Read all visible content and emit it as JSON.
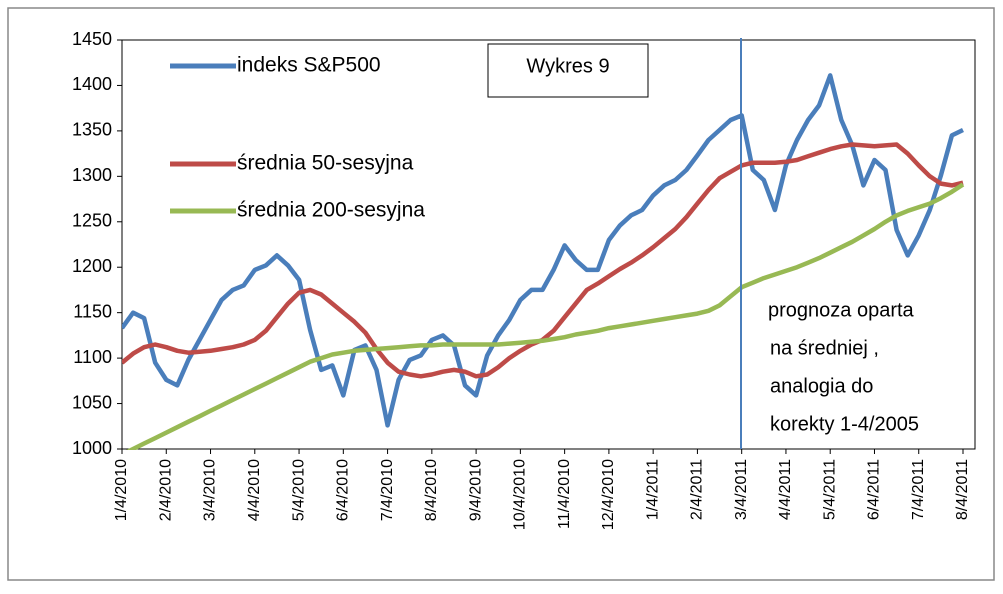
{
  "chart_data": {
    "type": "line",
    "title": "Wykres 9",
    "annotation": [
      "prognoza oparta",
      "na średniej ,",
      "analogia do",
      "korekty 1-4/2005"
    ],
    "categories": [
      "1/4/2010",
      null,
      null,
      null,
      "2/4/2010",
      null,
      null,
      null,
      "3/4/2010",
      null,
      null,
      null,
      "4/4/2010",
      null,
      null,
      null,
      "5/4/2010",
      null,
      null,
      null,
      "6/4/2010",
      null,
      null,
      null,
      "7/4/2010",
      null,
      null,
      null,
      "8/4/2010",
      null,
      null,
      null,
      "9/4/2010",
      null,
      null,
      null,
      "10/4/2010",
      null,
      null,
      null,
      "11/4/2010",
      null,
      null,
      null,
      "12/4/2010",
      null,
      null,
      null,
      "1/4/2011",
      null,
      null,
      null,
      "2/4/2011",
      null,
      null,
      null,
      "3/4/2011",
      null,
      null,
      null,
      "4/4/2011",
      null,
      null,
      null,
      "5/4/2011",
      null,
      null,
      null,
      "6/4/2011",
      null,
      null,
      null,
      "7/4/2011",
      null,
      null,
      null,
      "8/4/2011"
    ],
    "series": [
      {
        "name": "indeks S&P500",
        "color": "#4a7ebb",
        "values": [
          1133,
          1150,
          1144,
          1095,
          1076,
          1070,
          1098,
          1120,
          1142,
          1164,
          1175,
          1180,
          1197,
          1202,
          1213,
          1202,
          1186,
          1131,
          1087,
          1092,
          1059,
          1109,
          1114,
          1087,
          1026,
          1076,
          1098,
          1103,
          1120,
          1125,
          1114,
          1070,
          1059,
          1103,
          1125,
          1142,
          1164,
          1175,
          1175,
          1197,
          1224,
          1208,
          1197,
          1197,
          1230,
          1246,
          1257,
          1263,
          1279,
          1290,
          1296,
          1307,
          1323,
          1340,
          1351,
          1362,
          1367,
          1307,
          1296,
          1263,
          1312,
          1340,
          1362,
          1378,
          1411,
          1362,
          1334,
          1290,
          1318,
          1307,
          1241,
          1213,
          1235,
          1263,
          1301,
          1345,
          1351
        ]
      },
      {
        "name": "średnia 50-sesyjna",
        "color": "#be4b48",
        "values": [
          1095,
          1105,
          1112,
          1115,
          1112,
          1108,
          1106,
          1107,
          1108,
          1110,
          1112,
          1115,
          1120,
          1130,
          1145,
          1160,
          1172,
          1175,
          1170,
          1160,
          1150,
          1140,
          1128,
          1110,
          1095,
          1085,
          1082,
          1080,
          1082,
          1085,
          1087,
          1085,
          1080,
          1082,
          1090,
          1100,
          1108,
          1115,
          1120,
          1130,
          1145,
          1160,
          1175,
          1182,
          1190,
          1198,
          1205,
          1213,
          1222,
          1232,
          1242,
          1255,
          1270,
          1285,
          1298,
          1305,
          1312,
          1315,
          1315,
          1315,
          1316,
          1318,
          1322,
          1326,
          1330,
          1333,
          1335,
          1334,
          1333,
          1334,
          1335,
          1325,
          1312,
          1300,
          1292,
          1290,
          1293
        ]
      },
      {
        "name": "średnia 200-sesyjna",
        "color": "#98b954",
        "values": [
          994,
          1000,
          1006,
          1012,
          1018,
          1024,
          1030,
          1036,
          1042,
          1048,
          1054,
          1060,
          1066,
          1072,
          1078,
          1084,
          1090,
          1096,
          1100,
          1104,
          1106,
          1108,
          1109,
          1110,
          1111,
          1112,
          1113,
          1114,
          1114,
          1115,
          1115,
          1115,
          1115,
          1115,
          1115,
          1116,
          1117,
          1118,
          1119,
          1121,
          1123,
          1126,
          1128,
          1130,
          1133,
          1135,
          1137,
          1139,
          1141,
          1143,
          1145,
          1147,
          1149,
          1152,
          1158,
          1168,
          1178,
          1183,
          1188,
          1192,
          1196,
          1200,
          1205,
          1210,
          1216,
          1222,
          1228,
          1235,
          1242,
          1250,
          1257,
          1262,
          1266,
          1270,
          1276,
          1283,
          1291
        ]
      }
    ],
    "ylim": [
      1000,
      1450
    ],
    "yticks": [
      1000,
      1050,
      1100,
      1150,
      1200,
      1250,
      1300,
      1350,
      1400,
      1450
    ],
    "grid": false,
    "legend": "upper left"
  }
}
